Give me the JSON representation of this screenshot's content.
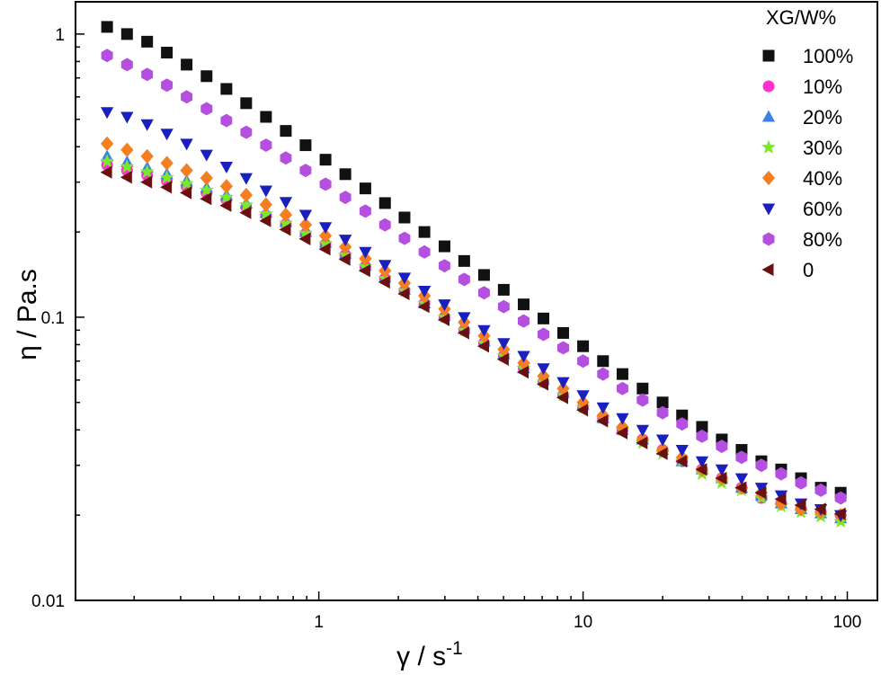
{
  "chart_data": {
    "type": "scatter",
    "xscale": "log",
    "yscale": "log",
    "xlim": [
      0.12,
      130
    ],
    "ylim": [
      0.01,
      1.3
    ],
    "xlabel": "γ / s",
    "xlabel_sup": "-1",
    "ylabel": "η / Pa.s",
    "x_ticks": [
      {
        "value": 1,
        "label": "1"
      },
      {
        "value": 10,
        "label": "10"
      },
      {
        "value": 100,
        "label": "100"
      }
    ],
    "y_ticks": [
      {
        "value": 0.01,
        "label": "0.01"
      },
      {
        "value": 0.1,
        "label": "0.1"
      },
      {
        "value": 1,
        "label": "1"
      }
    ],
    "grid": false,
    "legend_title": "XG/W%",
    "legend_position": "top-right",
    "x": [
      0.158,
      0.188,
      0.224,
      0.266,
      0.316,
      0.376,
      0.447,
      0.531,
      0.631,
      0.75,
      0.891,
      1.06,
      1.26,
      1.5,
      1.78,
      2.11,
      2.51,
      2.99,
      3.55,
      4.22,
      5.01,
      5.96,
      7.08,
      8.41,
      10.0,
      11.9,
      14.1,
      16.8,
      20.0,
      23.7,
      28.2,
      33.5,
      39.8,
      47.3,
      56.2,
      66.8,
      79.4,
      94.4
    ],
    "series": [
      {
        "name": "100%",
        "marker": "square",
        "color": "#111111",
        "values": [
          1.06,
          1.0,
          0.94,
          0.86,
          0.78,
          0.71,
          0.64,
          0.57,
          0.51,
          0.455,
          0.405,
          0.36,
          0.32,
          0.285,
          0.253,
          0.225,
          0.2,
          0.178,
          0.158,
          0.141,
          0.125,
          0.111,
          0.099,
          0.088,
          0.079,
          0.07,
          0.063,
          0.056,
          0.05,
          0.045,
          0.041,
          0.037,
          0.034,
          0.031,
          0.029,
          0.027,
          0.025,
          0.024
        ]
      },
      {
        "name": "10%",
        "marker": "circle",
        "color": "#ff2fd0",
        "values": [
          0.345,
          0.33,
          0.317,
          0.303,
          0.289,
          0.275,
          0.26,
          0.245,
          0.229,
          0.213,
          0.197,
          0.181,
          0.166,
          0.151,
          0.137,
          0.124,
          0.112,
          0.1,
          0.09,
          0.081,
          0.073,
          0.066,
          0.059,
          0.053,
          0.048,
          0.044,
          0.04,
          0.037,
          0.034,
          0.031,
          0.029,
          0.027,
          0.025,
          0.023,
          0.022,
          0.021,
          0.0205,
          0.02
        ]
      },
      {
        "name": "20%",
        "marker": "triangle-up",
        "color": "#3b82e8",
        "values": [
          0.37,
          0.353,
          0.337,
          0.32,
          0.303,
          0.287,
          0.27,
          0.252,
          0.234,
          0.217,
          0.2,
          0.183,
          0.167,
          0.152,
          0.138,
          0.125,
          0.112,
          0.101,
          0.091,
          0.082,
          0.074,
          0.066,
          0.06,
          0.054,
          0.049,
          0.044,
          0.04,
          0.037,
          0.034,
          0.031,
          0.029,
          0.027,
          0.025,
          0.0235,
          0.022,
          0.021,
          0.0203,
          0.0195
        ]
      },
      {
        "name": "30%",
        "marker": "star",
        "color": "#7be82a",
        "values": [
          0.355,
          0.34,
          0.326,
          0.311,
          0.296,
          0.281,
          0.265,
          0.249,
          0.232,
          0.215,
          0.198,
          0.182,
          0.166,
          0.151,
          0.137,
          0.124,
          0.112,
          0.1,
          0.09,
          0.081,
          0.073,
          0.066,
          0.059,
          0.053,
          0.048,
          0.044,
          0.04,
          0.036,
          0.033,
          0.031,
          0.028,
          0.026,
          0.0245,
          0.023,
          0.0215,
          0.0205,
          0.0198,
          0.019
        ]
      },
      {
        "name": "40%",
        "marker": "diamond",
        "color": "#f57f20",
        "values": [
          0.41,
          0.39,
          0.37,
          0.35,
          0.33,
          0.31,
          0.29,
          0.27,
          0.25,
          0.23,
          0.212,
          0.194,
          0.177,
          0.161,
          0.146,
          0.132,
          0.119,
          0.107,
          0.096,
          0.086,
          0.077,
          0.069,
          0.062,
          0.056,
          0.05,
          0.045,
          0.041,
          0.037,
          0.034,
          0.032,
          0.029,
          0.027,
          0.025,
          0.024,
          0.022,
          0.021,
          0.0205,
          0.02
        ]
      },
      {
        "name": "60%",
        "marker": "triangle-down",
        "color": "#1a1fbf",
        "values": [
          0.53,
          0.51,
          0.48,
          0.445,
          0.41,
          0.375,
          0.34,
          0.31,
          0.28,
          0.255,
          0.23,
          0.208,
          0.188,
          0.17,
          0.153,
          0.138,
          0.124,
          0.111,
          0.1,
          0.09,
          0.081,
          0.073,
          0.066,
          0.059,
          0.053,
          0.048,
          0.044,
          0.04,
          0.037,
          0.034,
          0.031,
          0.029,
          0.027,
          0.025,
          0.0235,
          0.022,
          0.021,
          0.02
        ]
      },
      {
        "name": "80%",
        "marker": "hexagon",
        "color": "#b44fe0",
        "values": [
          0.84,
          0.78,
          0.72,
          0.66,
          0.6,
          0.545,
          0.495,
          0.45,
          0.405,
          0.365,
          0.33,
          0.295,
          0.265,
          0.237,
          0.212,
          0.19,
          0.17,
          0.152,
          0.136,
          0.122,
          0.109,
          0.097,
          0.087,
          0.078,
          0.07,
          0.063,
          0.056,
          0.051,
          0.046,
          0.042,
          0.038,
          0.035,
          0.032,
          0.03,
          0.028,
          0.026,
          0.0245,
          0.023
        ]
      },
      {
        "name": "0",
        "marker": "triangle-left",
        "color": "#6b1010",
        "values": [
          0.325,
          0.312,
          0.3,
          0.288,
          0.275,
          0.262,
          0.248,
          0.234,
          0.219,
          0.204,
          0.189,
          0.174,
          0.16,
          0.146,
          0.133,
          0.121,
          0.109,
          0.098,
          0.088,
          0.079,
          0.071,
          0.064,
          0.058,
          0.052,
          0.047,
          0.043,
          0.039,
          0.036,
          0.033,
          0.031,
          0.029,
          0.027,
          0.025,
          0.024,
          0.0228,
          0.0217,
          0.021,
          0.0202
        ]
      }
    ]
  }
}
